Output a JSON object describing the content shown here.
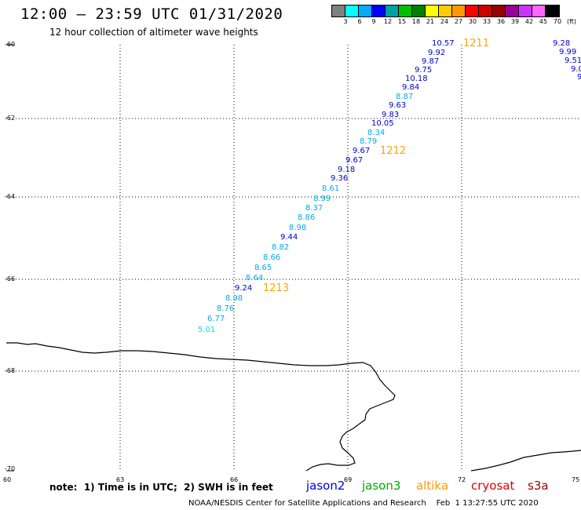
{
  "header": {
    "title": "12:00 — 23:59 UTC 01/31/2020",
    "subtitle": "12 hour collection of altimeter wave heights"
  },
  "scale": {
    "colors": [
      "#808080",
      "#00ffff",
      "#00aaff",
      "#0000ff",
      "#00a0a0",
      "#00c000",
      "#008000",
      "#ffff00",
      "#ffcc00",
      "#ff9900",
      "#ff0000",
      "#cc0000",
      "#990000",
      "#990099",
      "#cc33ff",
      "#ff66ff",
      "#000000"
    ],
    "labels": [
      "3",
      "6",
      "9",
      "12",
      "15",
      "18",
      "21",
      "24",
      "27",
      "30",
      "33",
      "36",
      "39",
      "42",
      "45",
      "70",
      "(ft)"
    ]
  },
  "axes": {
    "lat_labels": [
      "-60",
      "-62",
      "-64",
      "-66",
      "-68",
      "-70"
    ],
    "lon_labels": [
      "60",
      "63",
      "66",
      "69",
      "72",
      "75"
    ]
  },
  "observations": [
    {
      "text": "10.57",
      "color": "#0000cc"
    },
    {
      "text": "9.92",
      "color": "#0000cc"
    },
    {
      "text": "9.87",
      "color": "#0000cc"
    },
    {
      "text": "9.75",
      "color": "#0000cc"
    },
    {
      "text": "10.18",
      "color": "#0000cc"
    },
    {
      "text": "9.84",
      "color": "#0000cc"
    },
    {
      "text": "8.87",
      "color": "#00aaee"
    },
    {
      "text": "9.63",
      "color": "#0000cc"
    },
    {
      "text": "9.83",
      "color": "#0000cc"
    },
    {
      "text": "10.05",
      "color": "#0000cc"
    },
    {
      "text": "8.34",
      "color": "#00aaee"
    },
    {
      "text": "8.79",
      "color": "#00aaee"
    },
    {
      "text": "9.67",
      "color": "#0000cc"
    },
    {
      "text": "9.67",
      "color": "#0000cc"
    },
    {
      "text": "9.18",
      "color": "#0000cc"
    },
    {
      "text": "9.36",
      "color": "#0000cc"
    },
    {
      "text": "8.61",
      "color": "#00aaee"
    },
    {
      "text": "8.99",
      "color": "#00aaee"
    },
    {
      "text": "8.37",
      "color": "#00aaee"
    },
    {
      "text": "8.86",
      "color": "#00aaee"
    },
    {
      "text": "8.98",
      "color": "#00aaee"
    },
    {
      "text": "9.44",
      "color": "#0000cc"
    },
    {
      "text": "8.82",
      "color": "#00aaee"
    },
    {
      "text": "8.66",
      "color": "#00aaee"
    },
    {
      "text": "8.65",
      "color": "#00aaee"
    },
    {
      "text": "8.64",
      "color": "#00aaee"
    },
    {
      "text": "9.24",
      "color": "#0000cc"
    },
    {
      "text": "8.98",
      "color": "#00aaee"
    },
    {
      "text": "8.76",
      "color": "#00aaee"
    },
    {
      "text": "6.77",
      "color": "#00aaee"
    },
    {
      "text": "5.01",
      "color": "#00ddee"
    },
    {
      "text": "9.28",
      "color": "#0000cc"
    },
    {
      "text": "9.99",
      "color": "#0000cc"
    },
    {
      "text": "9.51",
      "color": "#0000cc"
    },
    {
      "text": "9.0",
      "color": "#0000cc"
    },
    {
      "text": "9",
      "color": "#0000cc"
    }
  ],
  "pass_labels": [
    "1211",
    "1212",
    "1213"
  ],
  "note": "note:  1) Time is in UTC;  2) SWH is in feet",
  "legend": [
    {
      "name": "jason2",
      "color": "#0000dd"
    },
    {
      "name": "jason3",
      "color": "#00aa00"
    },
    {
      "name": "altika",
      "color": "#ff9900"
    },
    {
      "name": "cryosat",
      "color": "#dd0000"
    },
    {
      "name": "s3a",
      "color": "#990000"
    }
  ],
  "credit": "NOAA/NESDIS Center for Satellite Applications and Research    Feb  1 13:27:55 UTC 2020"
}
